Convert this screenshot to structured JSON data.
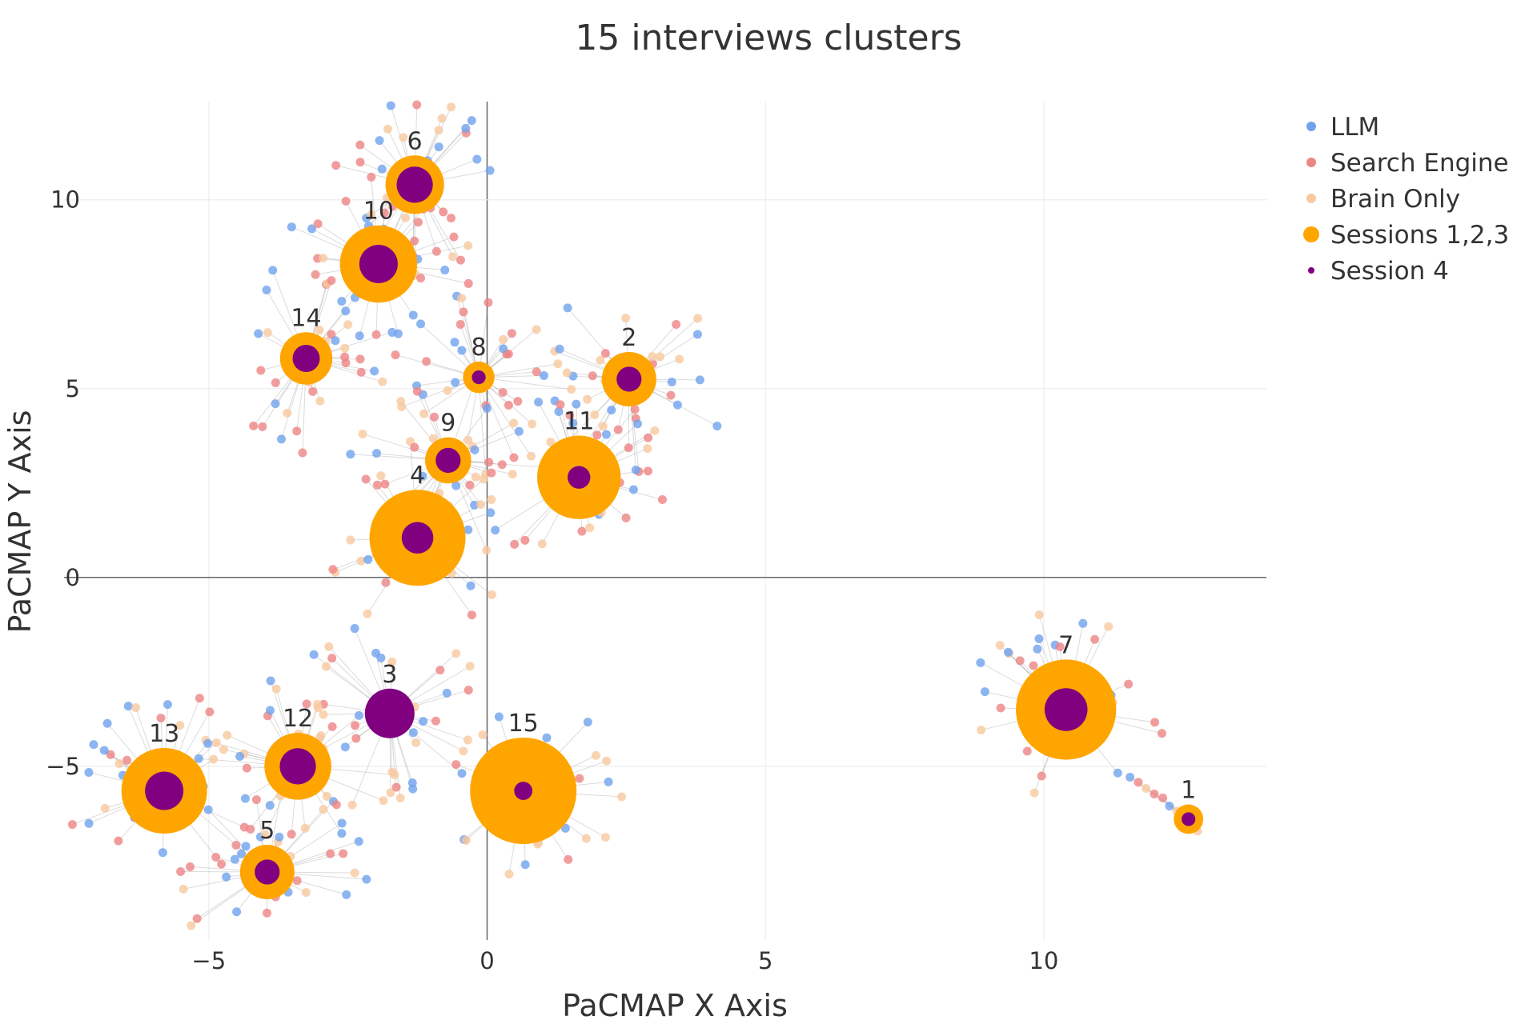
{
  "chart_data": {
    "type": "scatter",
    "title": "15 interviews clusters",
    "xlabel": "PaCMAP X Axis",
    "ylabel": "PaCMAP Y Axis",
    "xlim": [
      -7.6,
      14.0
    ],
    "ylim": [
      -9.6,
      12.6
    ],
    "xticks": [
      -5,
      0,
      5,
      10
    ],
    "yticks": [
      -5,
      0,
      5,
      10
    ],
    "xtick_labels": [
      "−5",
      "0",
      "5",
      "10"
    ],
    "ytick_labels": [
      "−5",
      "0",
      "5",
      "10"
    ],
    "grid": true,
    "zero_lines": true,
    "legend_position": "top-right",
    "legend": [
      {
        "name": "LLM",
        "color": "#6fa3ee",
        "marker": "small-dot"
      },
      {
        "name": "Search Engine",
        "color": "#ee8585",
        "marker": "small-dot"
      },
      {
        "name": "Brain Only",
        "color": "#f8c9a0",
        "marker": "small-dot"
      },
      {
        "name": "Sessions 1,2,3",
        "color": "#ffa500",
        "marker": "large-dot"
      },
      {
        "name": "Session 4",
        "color": "#800080",
        "marker": "tiny-dot"
      }
    ],
    "clusters": [
      {
        "label": "1",
        "x": 12.6,
        "y": -6.4,
        "size123": 0.4,
        "size4": 0.2
      },
      {
        "label": "2",
        "x": 2.55,
        "y": 5.25,
        "size123": 1.0,
        "size4": 0.45
      },
      {
        "label": "3",
        "x": -1.75,
        "y": -3.6,
        "size123": 0.0,
        "size4": 1.0
      },
      {
        "label": "4",
        "x": -1.25,
        "y": 1.05,
        "size123": 2.0,
        "size4": 0.6
      },
      {
        "label": "5",
        "x": -3.95,
        "y": -7.8,
        "size123": 1.0,
        "size4": 0.45
      },
      {
        "label": "6",
        "x": -1.3,
        "y": 10.4,
        "size123": 1.1,
        "size4": 0.7
      },
      {
        "label": "7",
        "x": 10.4,
        "y": -3.5,
        "size123": 2.1,
        "size4": 0.85
      },
      {
        "label": "8",
        "x": -0.15,
        "y": 5.3,
        "size123": 0.45,
        "size4": 0.2
      },
      {
        "label": "9",
        "x": -0.7,
        "y": 3.1,
        "size123": 0.8,
        "size4": 0.45
      },
      {
        "label": "10",
        "x": -1.95,
        "y": 8.3,
        "size123": 1.55,
        "size4": 0.75
      },
      {
        "label": "11",
        "x": 1.65,
        "y": 2.65,
        "size123": 1.7,
        "size4": 0.4
      },
      {
        "label": "12",
        "x": -3.4,
        "y": -5.0,
        "size123": 1.3,
        "size4": 0.7
      },
      {
        "label": "13",
        "x": -5.8,
        "y": -5.65,
        "size123": 1.75,
        "size4": 0.75
      },
      {
        "label": "14",
        "x": -3.25,
        "y": 5.8,
        "size123": 0.95,
        "size4": 0.5
      },
      {
        "label": "15",
        "x": 0.65,
        "y": -5.65,
        "size123": 2.25,
        "size4": 0.3
      }
    ]
  }
}
